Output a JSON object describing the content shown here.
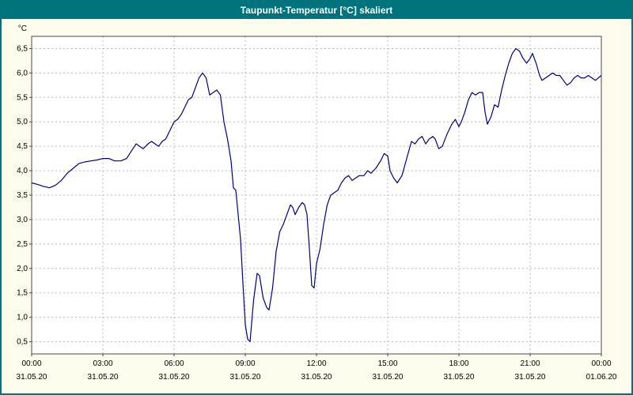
{
  "window": {
    "title": "Taupunkt-Temperatur [°C] skaliert"
  },
  "colors": {
    "titlebar": "#00737c",
    "border": "#00737c",
    "background": "#fdfcec",
    "plot_bg": "#ffffff",
    "plot_border": "#4a4a4a",
    "grid": "#b8b8b8",
    "line": "#000080",
    "text": "#000000"
  },
  "chart_data": {
    "type": "line",
    "title": "Taupunkt-Temperatur [°C] skaliert",
    "ylabel": "°C",
    "xlabel": "",
    "ylim": [
      0.25,
      6.75
    ],
    "xlim": [
      0,
      24
    ],
    "grid": true,
    "legend": "none",
    "y_ticks": [
      {
        "v": 0.5,
        "label": "0,5"
      },
      {
        "v": 1.0,
        "label": "1,0"
      },
      {
        "v": 1.5,
        "label": "1,5"
      },
      {
        "v": 2.0,
        "label": "2,0"
      },
      {
        "v": 2.5,
        "label": "2,5"
      },
      {
        "v": 3.0,
        "label": "3,0"
      },
      {
        "v": 3.5,
        "label": "3,5"
      },
      {
        "v": 4.0,
        "label": "4,0"
      },
      {
        "v": 4.5,
        "label": "4,5"
      },
      {
        "v": 5.0,
        "label": "5,0"
      },
      {
        "v": 5.5,
        "label": "5,5"
      },
      {
        "v": 6.0,
        "label": "6,0"
      },
      {
        "v": 6.5,
        "label": "6,5"
      }
    ],
    "x_ticks": [
      {
        "v": 0,
        "time": "00:00",
        "date": "31.05.20"
      },
      {
        "v": 3,
        "time": "03:00",
        "date": "31.05.20"
      },
      {
        "v": 6,
        "time": "06:00",
        "date": "31.05.20"
      },
      {
        "v": 9,
        "time": "09:00",
        "date": "31.05.20"
      },
      {
        "v": 12,
        "time": "12:00",
        "date": "31.05.20"
      },
      {
        "v": 15,
        "time": "15:00",
        "date": "31.05.20"
      },
      {
        "v": 18,
        "time": "18:00",
        "date": "31.05.20"
      },
      {
        "v": 21,
        "time": "21:00",
        "date": "31.05.20"
      },
      {
        "v": 24,
        "time": "00:00",
        "date": "01.06.20"
      }
    ],
    "series": [
      {
        "name": "Taupunkt-Temperatur",
        "color": "#000080",
        "points": [
          [
            0,
            3.75
          ],
          [
            0.25,
            3.72
          ],
          [
            0.5,
            3.68
          ],
          [
            0.75,
            3.65
          ],
          [
            1,
            3.7
          ],
          [
            1.25,
            3.8
          ],
          [
            1.5,
            3.95
          ],
          [
            1.75,
            4.05
          ],
          [
            2,
            4.15
          ],
          [
            2.25,
            4.18
          ],
          [
            2.5,
            4.2
          ],
          [
            2.75,
            4.22
          ],
          [
            3,
            4.25
          ],
          [
            3.25,
            4.25
          ],
          [
            3.5,
            4.2
          ],
          [
            3.75,
            4.2
          ],
          [
            4,
            4.25
          ],
          [
            4.2,
            4.4
          ],
          [
            4.4,
            4.55
          ],
          [
            4.55,
            4.5
          ],
          [
            4.7,
            4.45
          ],
          [
            4.9,
            4.55
          ],
          [
            5.05,
            4.6
          ],
          [
            5.2,
            4.55
          ],
          [
            5.35,
            4.5
          ],
          [
            5.5,
            4.6
          ],
          [
            5.65,
            4.65
          ],
          [
            5.8,
            4.8
          ],
          [
            6,
            5.0
          ],
          [
            6.15,
            5.05
          ],
          [
            6.3,
            5.15
          ],
          [
            6.45,
            5.3
          ],
          [
            6.6,
            5.45
          ],
          [
            6.75,
            5.5
          ],
          [
            6.9,
            5.7
          ],
          [
            7.05,
            5.9
          ],
          [
            7.2,
            6.0
          ],
          [
            7.35,
            5.9
          ],
          [
            7.5,
            5.55
          ],
          [
            7.65,
            5.6
          ],
          [
            7.8,
            5.65
          ],
          [
            7.95,
            5.55
          ],
          [
            8.1,
            5.0
          ],
          [
            8.25,
            4.65
          ],
          [
            8.4,
            4.2
          ],
          [
            8.5,
            3.65
          ],
          [
            8.6,
            3.6
          ],
          [
            8.7,
            3.1
          ],
          [
            8.8,
            2.6
          ],
          [
            8.9,
            1.7
          ],
          [
            9.0,
            0.85
          ],
          [
            9.1,
            0.55
          ],
          [
            9.2,
            0.5
          ],
          [
            9.35,
            1.35
          ],
          [
            9.5,
            1.9
          ],
          [
            9.6,
            1.85
          ],
          [
            9.75,
            1.4
          ],
          [
            9.9,
            1.2
          ],
          [
            10,
            1.15
          ],
          [
            10.15,
            1.6
          ],
          [
            10.3,
            2.35
          ],
          [
            10.45,
            2.75
          ],
          [
            10.6,
            2.9
          ],
          [
            10.75,
            3.1
          ],
          [
            10.9,
            3.3
          ],
          [
            11,
            3.25
          ],
          [
            11.1,
            3.1
          ],
          [
            11.25,
            3.25
          ],
          [
            11.4,
            3.35
          ],
          [
            11.5,
            3.3
          ],
          [
            11.6,
            3.1
          ],
          [
            11.7,
            2.4
          ],
          [
            11.8,
            1.65
          ],
          [
            11.9,
            1.6
          ],
          [
            12,
            2.1
          ],
          [
            12.15,
            2.4
          ],
          [
            12.3,
            2.9
          ],
          [
            12.45,
            3.3
          ],
          [
            12.6,
            3.5
          ],
          [
            12.75,
            3.55
          ],
          [
            12.9,
            3.6
          ],
          [
            13.05,
            3.75
          ],
          [
            13.2,
            3.85
          ],
          [
            13.35,
            3.9
          ],
          [
            13.5,
            3.8
          ],
          [
            13.65,
            3.85
          ],
          [
            13.8,
            3.9
          ],
          [
            14,
            3.9
          ],
          [
            14.15,
            4.0
          ],
          [
            14.3,
            3.95
          ],
          [
            14.5,
            4.05
          ],
          [
            14.7,
            4.2
          ],
          [
            14.85,
            4.35
          ],
          [
            15,
            4.3
          ],
          [
            15.1,
            4.0
          ],
          [
            15.25,
            3.85
          ],
          [
            15.4,
            3.75
          ],
          [
            15.6,
            3.9
          ],
          [
            15.8,
            4.25
          ],
          [
            16,
            4.6
          ],
          [
            16.15,
            4.55
          ],
          [
            16.3,
            4.65
          ],
          [
            16.45,
            4.7
          ],
          [
            16.6,
            4.55
          ],
          [
            16.75,
            4.65
          ],
          [
            16.9,
            4.7
          ],
          [
            17,
            4.65
          ],
          [
            17.15,
            4.45
          ],
          [
            17.3,
            4.5
          ],
          [
            17.5,
            4.75
          ],
          [
            17.7,
            4.95
          ],
          [
            17.85,
            5.05
          ],
          [
            18,
            4.9
          ],
          [
            18.1,
            5.0
          ],
          [
            18.25,
            5.2
          ],
          [
            18.4,
            5.45
          ],
          [
            18.55,
            5.6
          ],
          [
            18.7,
            5.55
          ],
          [
            18.85,
            5.6
          ],
          [
            19,
            5.6
          ],
          [
            19.1,
            5.2
          ],
          [
            19.2,
            4.95
          ],
          [
            19.35,
            5.1
          ],
          [
            19.5,
            5.35
          ],
          [
            19.65,
            5.3
          ],
          [
            19.8,
            5.65
          ],
          [
            19.95,
            5.95
          ],
          [
            20.1,
            6.2
          ],
          [
            20.25,
            6.4
          ],
          [
            20.4,
            6.5
          ],
          [
            20.55,
            6.45
          ],
          [
            20.7,
            6.3
          ],
          [
            20.85,
            6.2
          ],
          [
            21,
            6.3
          ],
          [
            21.1,
            6.4
          ],
          [
            21.25,
            6.2
          ],
          [
            21.4,
            5.95
          ],
          [
            21.5,
            5.85
          ],
          [
            21.65,
            5.9
          ],
          [
            21.8,
            5.95
          ],
          [
            21.95,
            6.0
          ],
          [
            22.1,
            5.95
          ],
          [
            22.25,
            5.95
          ],
          [
            22.4,
            5.85
          ],
          [
            22.55,
            5.75
          ],
          [
            22.7,
            5.8
          ],
          [
            22.85,
            5.9
          ],
          [
            23,
            5.95
          ],
          [
            23.15,
            5.9
          ],
          [
            23.3,
            5.9
          ],
          [
            23.45,
            5.95
          ],
          [
            23.6,
            5.9
          ],
          [
            23.75,
            5.85
          ],
          [
            24,
            5.95
          ]
        ]
      }
    ]
  }
}
